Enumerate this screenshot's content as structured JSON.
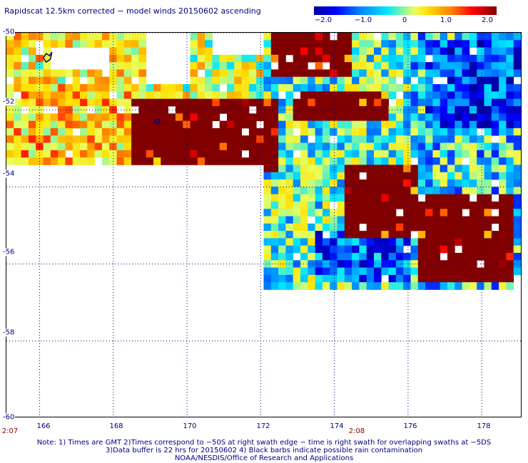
{
  "title": "Rapidscat 12.5km corrected − model winds 20150602 ascending",
  "colorbar": {
    "labels": [
      "−2.0",
      "−1.0",
      "0",
      "1.0",
      "2.0"
    ],
    "stops": [
      -2.0,
      -1.0,
      0,
      1.0,
      2.0
    ],
    "colors": [
      "#0000a0",
      "#0000ff",
      "#0080ff",
      "#00e8ff",
      "#e8ff60",
      "#ffe000",
      "#ff8000",
      "#ff0000",
      "#800000"
    ]
  },
  "axes": {
    "lat_ticks": [
      "-50",
      "-52",
      "-54",
      "-56",
      "-58",
      "-60"
    ],
    "lat_values": [
      -50,
      -52,
      -54,
      -56,
      -58,
      -60
    ],
    "lon_ticks": [
      "166",
      "168",
      "170",
      "172",
      "174",
      "176",
      "178"
    ],
    "lon_values": [
      166,
      168,
      170,
      172,
      174,
      176,
      178
    ],
    "lon_range": [
      165.1,
      179.1
    ],
    "lat_range": [
      -50,
      -60
    ],
    "grid": "dotted"
  },
  "time_labels": [
    {
      "text": "2:07",
      "lon": 165.1
    },
    {
      "text": "2:08",
      "lon": 174.6
    }
  ],
  "notes": [
    "Note: 1) Times are GMT 2)Times correspond to −50S at right swath edge − time is right swath for overlapping swaths at −5DS",
    "3)Data buffer is 22 hrs for 20150602 4) Black barbs indicate possible rain contamination",
    "NOAA/NESDIS/Office of Research and Applications"
  ],
  "chart_data": {
    "type": "heatmap",
    "title": "Rapidscat 12.5km corrected − model winds 20150602 ascending",
    "xlabel": "",
    "ylabel": "",
    "xlim": [
      165.1,
      179.1
    ],
    "ylim": [
      -60,
      -50
    ],
    "value_range": [
      -2.0,
      2.0
    ],
    "regions": [
      {
        "desc": "strong positive",
        "lon": [
          168.5,
          172.5
        ],
        "lat": [
          -51.8,
          -53.7
        ],
        "value": 2.0
      },
      {
        "desc": "strong positive",
        "lon": [
          172.2,
          174.5
        ],
        "lat": [
          -50.0,
          -51.2
        ],
        "value": 2.0
      },
      {
        "desc": "strong positive",
        "lon": [
          172.8,
          175.5
        ],
        "lat": [
          -51.5,
          -52.3
        ],
        "value": 2.0
      },
      {
        "desc": "strong positive",
        "lon": [
          174.3,
          176.3
        ],
        "lat": [
          -53.4,
          -55.3
        ],
        "value": 2.0
      },
      {
        "desc": "strong positive",
        "lon": [
          176.2,
          178.8
        ],
        "lat": [
          -54.2,
          -56.4
        ],
        "value": 2.0
      },
      {
        "desc": "negative",
        "lon": [
          173.5,
          176.0
        ],
        "lat": [
          -55.2,
          -56.4
        ],
        "value": -1.2
      },
      {
        "desc": "negative",
        "lon": [
          176.5,
          179.0
        ],
        "lat": [
          -50.2,
          -52.5
        ],
        "value": -1.3
      },
      {
        "desc": "positive west",
        "lon": [
          165.1,
          168.5
        ],
        "lat": [
          -51.3,
          -53.5
        ],
        "value": 0.6
      }
    ]
  }
}
